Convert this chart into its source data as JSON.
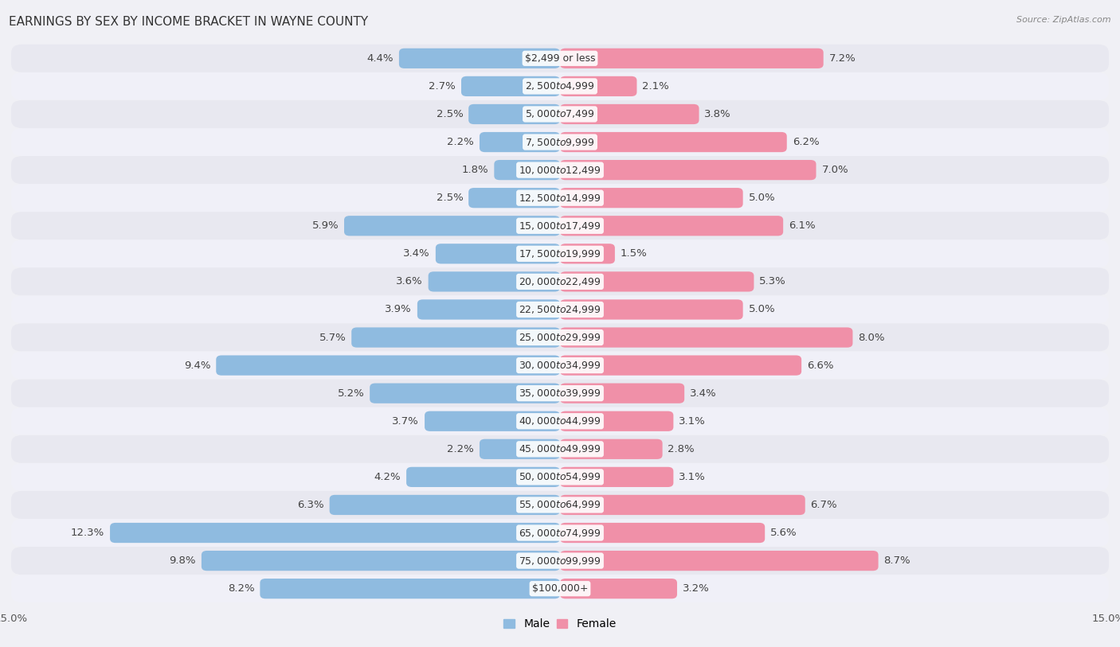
{
  "title": "EARNINGS BY SEX BY INCOME BRACKET IN WAYNE COUNTY",
  "source": "Source: ZipAtlas.com",
  "categories": [
    "$2,499 or less",
    "$2,500 to $4,999",
    "$5,000 to $7,499",
    "$7,500 to $9,999",
    "$10,000 to $12,499",
    "$12,500 to $14,999",
    "$15,000 to $17,499",
    "$17,500 to $19,999",
    "$20,000 to $22,499",
    "$22,500 to $24,999",
    "$25,000 to $29,999",
    "$30,000 to $34,999",
    "$35,000 to $39,999",
    "$40,000 to $44,999",
    "$45,000 to $49,999",
    "$50,000 to $54,999",
    "$55,000 to $64,999",
    "$65,000 to $74,999",
    "$75,000 to $99,999",
    "$100,000+"
  ],
  "male_values": [
    4.4,
    2.7,
    2.5,
    2.2,
    1.8,
    2.5,
    5.9,
    3.4,
    3.6,
    3.9,
    5.7,
    9.4,
    5.2,
    3.7,
    2.2,
    4.2,
    6.3,
    12.3,
    9.8,
    8.2
  ],
  "female_values": [
    7.2,
    2.1,
    3.8,
    6.2,
    7.0,
    5.0,
    6.1,
    1.5,
    5.3,
    5.0,
    8.0,
    6.6,
    3.4,
    3.1,
    2.8,
    3.1,
    6.7,
    5.6,
    8.7,
    3.2
  ],
  "male_color": "#8fbbe0",
  "female_color": "#f090a8",
  "axis_max": 15.0,
  "row_color_even": "#e8e8f0",
  "row_color_odd": "#f0f0f8",
  "background_color": "#f0f0f5",
  "title_fontsize": 11,
  "label_fontsize": 9.5,
  "tick_fontsize": 9.5,
  "category_fontsize": 9
}
